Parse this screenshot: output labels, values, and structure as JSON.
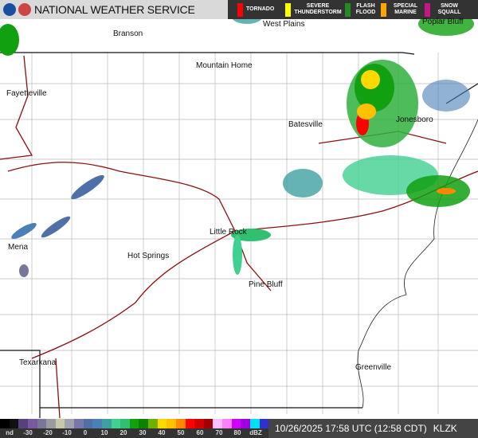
{
  "header": {
    "title": "NATIONAL WEATHER SERVICE",
    "logos": [
      "noaa-logo",
      "nws-logo"
    ]
  },
  "warnings": [
    {
      "label": "TORNADO",
      "color": "#ff0000"
    },
    {
      "label": "SEVERE THUNDERSTORM",
      "color": "#ffff00"
    },
    {
      "label": "FLASH FLOOD",
      "color": "#228b22"
    },
    {
      "label": "SPECIAL MARINE",
      "color": "#ffa500"
    },
    {
      "label": "SNOW SQUALL",
      "color": "#c71585"
    }
  ],
  "cities": [
    "Branson",
    "West Plains",
    "Poplar Bluff",
    "Mountain Home",
    "Fayetteville",
    "Batesville",
    "Jonesboro",
    "Little Rock",
    "Mena",
    "Hot Springs",
    "Pine Bluff",
    "Texarkana",
    "Greenville"
  ],
  "legend": {
    "labels": [
      "nd",
      "-30",
      "-20",
      "-10",
      "0",
      "10",
      "20",
      "30",
      "40",
      "50",
      "60",
      "70",
      "80",
      "dBZ"
    ],
    "colors": [
      "#000000",
      "#111111",
      "#5a3f7e",
      "#7a5a9e",
      "#77779a",
      "#9a9aa0",
      "#c9c9a8",
      "#a0a0b0",
      "#7777a8",
      "#4f6fa8",
      "#4a7fb8",
      "#3fa0a0",
      "#40d090",
      "#30c070",
      "#10a010",
      "#108000",
      "#70b000",
      "#ffd800",
      "#ffc000",
      "#ff8800",
      "#ff0000",
      "#d00000",
      "#a00000",
      "#ffc0ff",
      "#ff80ff",
      "#d000ff",
      "#a000e0",
      "#00e0f0",
      "#3030d0"
    ]
  },
  "status": {
    "timestamp": "10/26/2025 17:58 UTC (12:58 CDT)",
    "station": "KLZK"
  }
}
